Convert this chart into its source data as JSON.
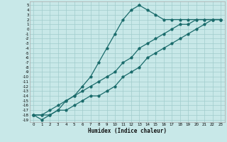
{
  "xlabel": "Humidex (Indice chaleur)",
  "bg_color": "#c8e8e8",
  "grid_color": "#a0cccc",
  "line_color": "#1a6b6b",
  "xlim": [
    -0.5,
    23.5
  ],
  "ylim": [
    -19.5,
    5.8
  ],
  "xticks": [
    0,
    1,
    2,
    3,
    4,
    5,
    6,
    7,
    8,
    9,
    10,
    11,
    12,
    13,
    14,
    15,
    16,
    17,
    18,
    19,
    20,
    21,
    22,
    23
  ],
  "yticks": [
    5,
    4,
    3,
    2,
    1,
    0,
    -1,
    -2,
    -3,
    -4,
    -5,
    -6,
    -7,
    -8,
    -9,
    -10,
    -11,
    -12,
    -13,
    -14,
    -15,
    -16,
    -17,
    -18,
    -19
  ],
  "curve_bell_x": [
    0,
    1,
    2,
    3,
    4,
    5,
    6,
    7,
    8,
    9,
    10,
    11,
    12,
    13,
    14,
    15,
    16,
    17,
    18,
    19,
    20,
    21,
    22,
    23
  ],
  "curve_bell_y": [
    -18,
    -19,
    -18,
    -17,
    -15,
    -14,
    -12,
    -10,
    -7,
    -4,
    -1,
    2,
    4,
    5,
    4,
    3,
    2,
    2,
    2,
    2,
    2,
    2,
    2,
    2
  ],
  "curve_line1_x": [
    0,
    1,
    2,
    3,
    4,
    5,
    6,
    7,
    8,
    9,
    10,
    11,
    12,
    13,
    14,
    15,
    16,
    17,
    18,
    19,
    20,
    21,
    22,
    23
  ],
  "curve_line1_y": [
    -18,
    -18,
    -17,
    -16,
    -15,
    -14,
    -13,
    -12,
    -11,
    -10,
    -9,
    -7,
    -6,
    -4,
    -3,
    -2,
    -1,
    0,
    1,
    1,
    2,
    2,
    2,
    2
  ],
  "curve_line2_x": [
    0,
    1,
    2,
    3,
    4,
    5,
    6,
    7,
    8,
    9,
    10,
    11,
    12,
    13,
    14,
    15,
    16,
    17,
    18,
    19,
    20,
    21,
    22,
    23
  ],
  "curve_line2_y": [
    -18,
    -18,
    -18,
    -17,
    -17,
    -16,
    -15,
    -14,
    -14,
    -13,
    -12,
    -10,
    -9,
    -8,
    -6,
    -5,
    -4,
    -3,
    -2,
    -1,
    0,
    1,
    2,
    2
  ]
}
